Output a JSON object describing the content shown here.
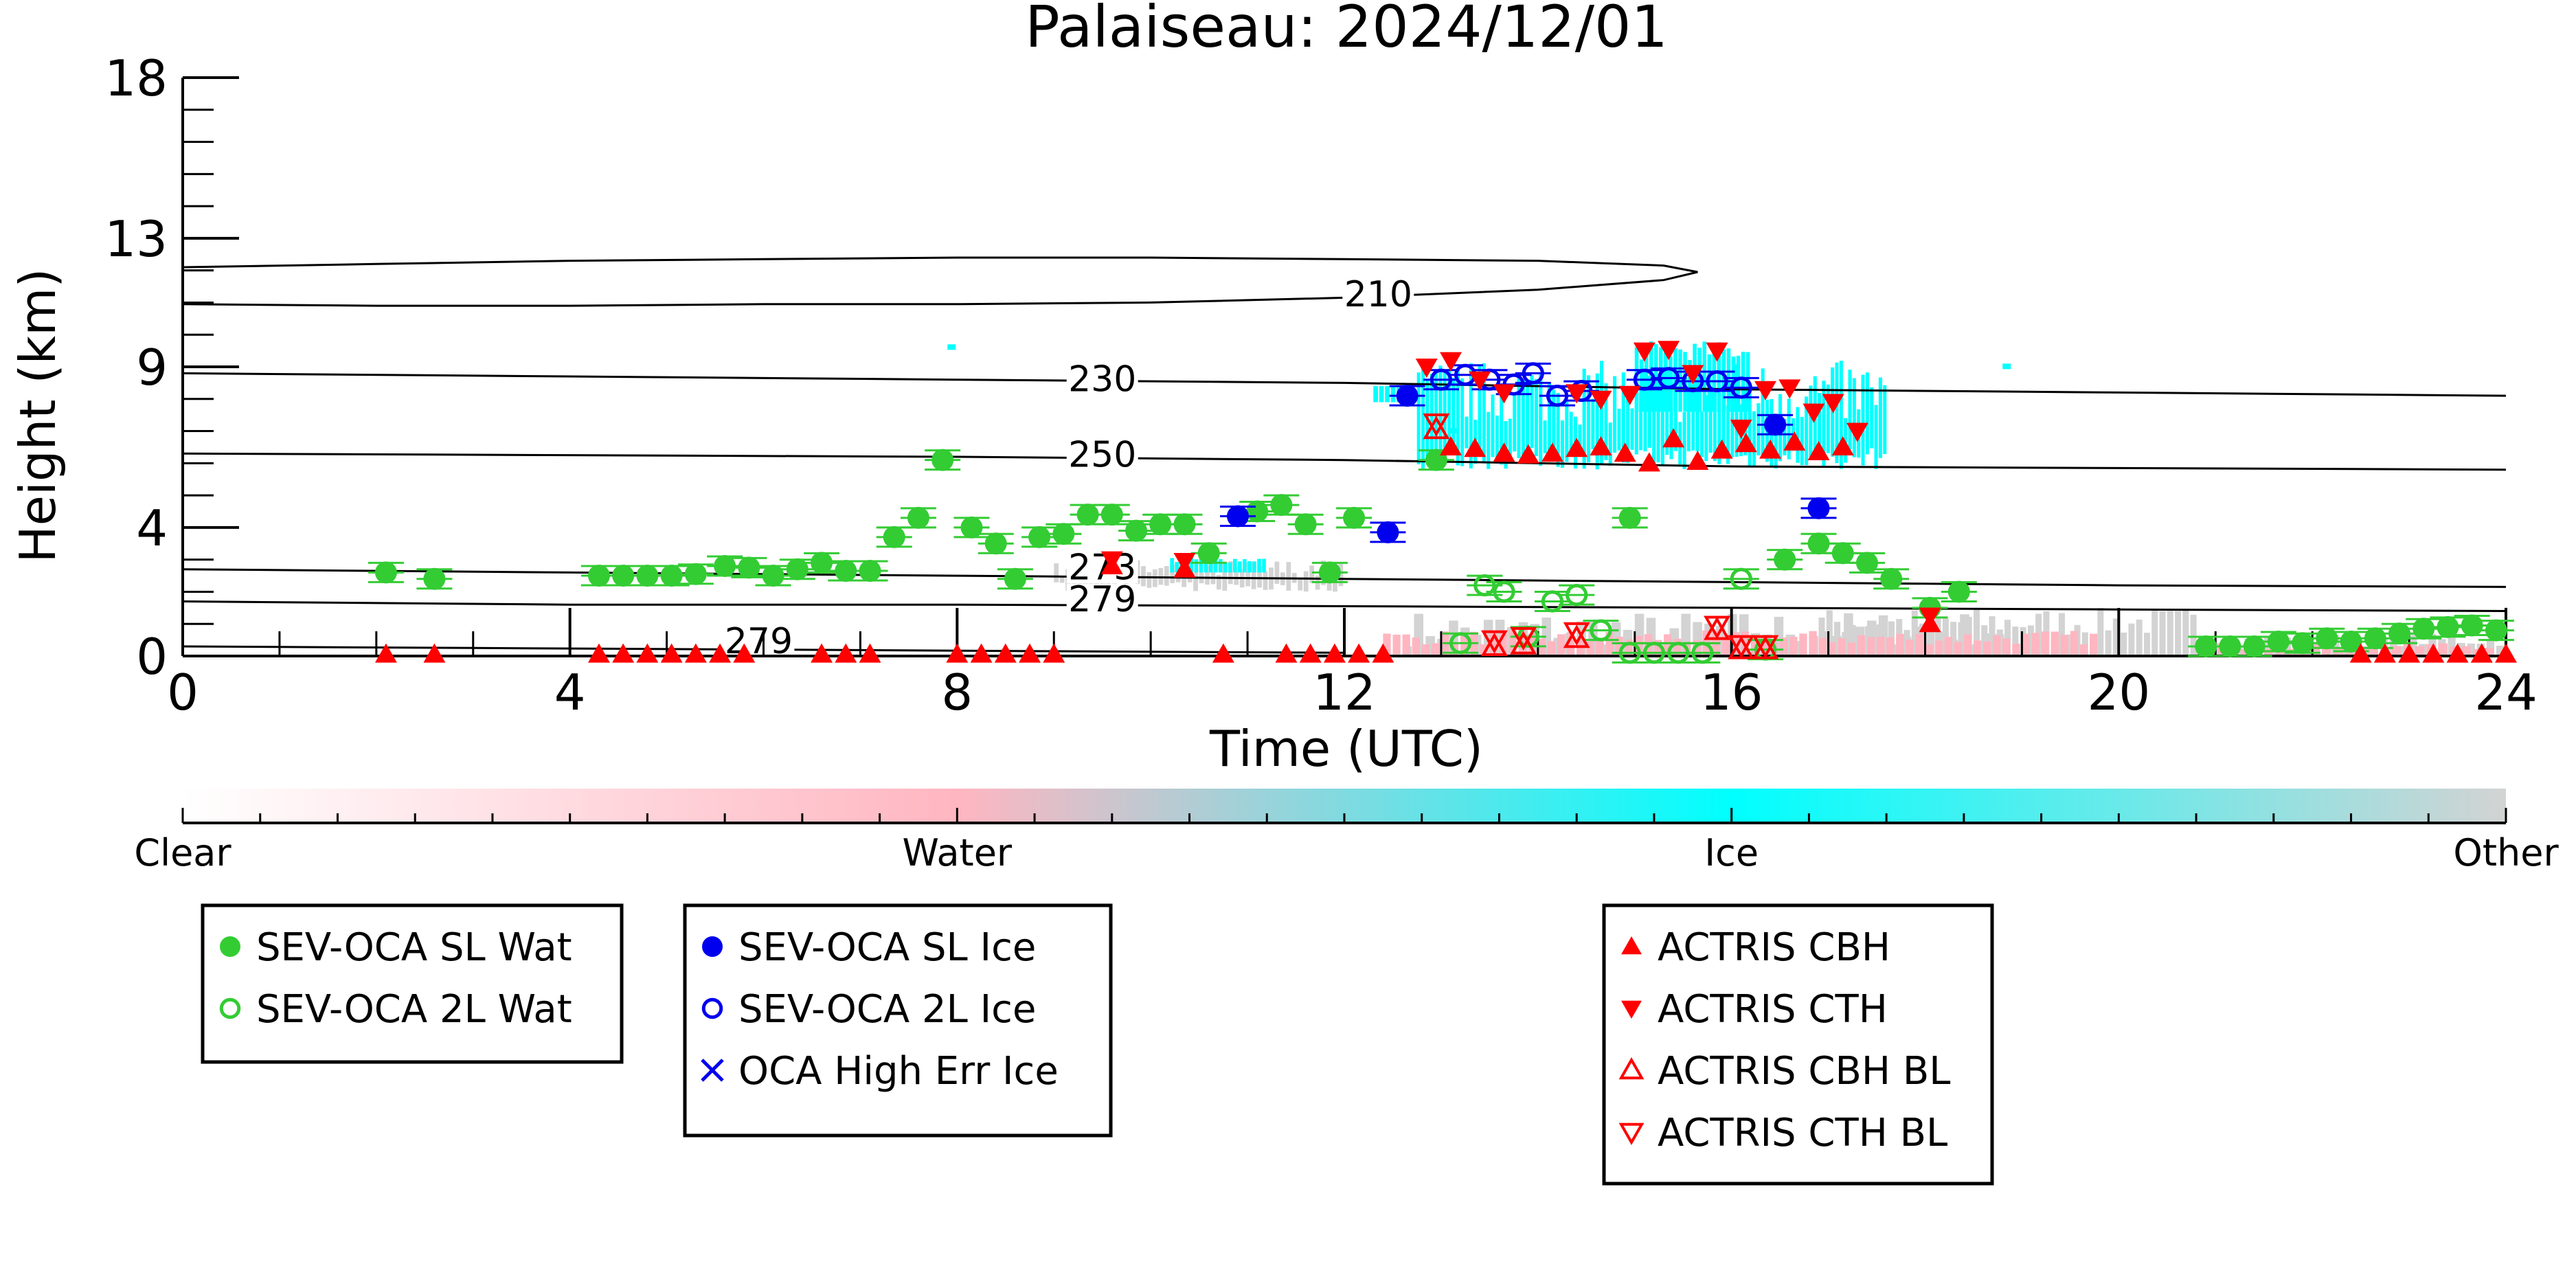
{
  "chart_data": {
    "type": "scatter",
    "title": "Palaiseau: 2024/12/01",
    "xlabel": "Time (UTC)",
    "ylabel": "Height (km)",
    "xlim": [
      0,
      24
    ],
    "ylim": [
      0,
      18
    ],
    "x_ticks": [
      0,
      4,
      8,
      12,
      16,
      20,
      24
    ],
    "y_ticks": [
      0,
      4,
      9,
      13,
      18
    ],
    "colorbar": {
      "labels": [
        "Clear",
        "Water",
        "Ice",
        "Other"
      ],
      "colors": [
        "#ffffff",
        "#ffb6c1",
        "#00ffff",
        "#d3d3d3"
      ]
    },
    "temperature_contours": [
      {
        "label": "210",
        "label_pos": [
          12.35,
          11.1
        ],
        "points": [
          [
            0,
            12.1
          ],
          [
            2,
            12.2
          ],
          [
            4,
            12.3
          ],
          [
            6,
            12.35
          ],
          [
            8,
            12.4
          ],
          [
            10,
            12.4
          ],
          [
            12,
            12.35
          ],
          [
            14,
            12.3
          ],
          [
            15.3,
            12.15
          ],
          [
            15.65,
            11.95
          ],
          [
            15.3,
            11.7
          ],
          [
            14,
            11.4
          ],
          [
            12,
            11.15
          ],
          [
            10,
            11.0
          ],
          [
            8,
            10.95
          ],
          [
            6,
            10.95
          ],
          [
            4,
            10.9
          ],
          [
            2,
            10.9
          ],
          [
            0,
            10.95
          ]
        ]
      },
      {
        "label": "230",
        "label_pos": [
          9.5,
          8.45
        ],
        "points": [
          [
            0,
            8.8
          ],
          [
            4,
            8.7
          ],
          [
            8,
            8.6
          ],
          [
            12,
            8.5
          ],
          [
            16,
            8.3
          ],
          [
            20,
            8.2
          ],
          [
            24,
            8.1
          ]
        ]
      },
      {
        "label": "250",
        "label_pos": [
          9.5,
          6.1
        ],
        "points": [
          [
            0,
            6.3
          ],
          [
            4,
            6.25
          ],
          [
            8,
            6.2
          ],
          [
            12,
            6.1
          ],
          [
            16,
            5.9
          ],
          [
            20,
            5.85
          ],
          [
            24,
            5.8
          ]
        ]
      },
      {
        "label": "273",
        "label_pos": [
          9.5,
          2.6
        ],
        "points": [
          [
            0,
            2.7
          ],
          [
            4,
            2.6
          ],
          [
            8,
            2.5
          ],
          [
            12,
            2.4
          ],
          [
            16,
            2.3
          ],
          [
            20,
            2.2
          ],
          [
            24,
            2.15
          ]
        ]
      },
      {
        "label": "279",
        "label_pos": [
          9.5,
          1.6
        ],
        "points": [
          [
            0,
            1.7
          ],
          [
            4,
            1.6
          ],
          [
            8,
            1.6
          ],
          [
            12,
            1.55
          ],
          [
            16,
            1.5
          ],
          [
            20,
            1.45
          ],
          [
            24,
            1.4
          ]
        ]
      },
      {
        "label": "279",
        "label_pos": [
          5.95,
          0.3
        ],
        "points": [
          [
            0,
            0.3
          ],
          [
            3,
            0.25
          ],
          [
            6,
            0.2
          ],
          [
            9,
            0.15
          ],
          [
            12,
            0.1
          ]
        ]
      }
    ],
    "series": [
      {
        "name": "SEV-OCA SL Wat",
        "color": "#33cc33",
        "marker": "circle-filled",
        "points": [
          [
            2.1,
            2.6
          ],
          [
            2.6,
            2.4
          ],
          [
            4.3,
            2.5
          ],
          [
            4.55,
            2.5
          ],
          [
            4.8,
            2.5
          ],
          [
            5.05,
            2.5
          ],
          [
            5.3,
            2.55
          ],
          [
            5.6,
            2.8
          ],
          [
            5.85,
            2.75
          ],
          [
            6.1,
            2.5
          ],
          [
            6.35,
            2.7
          ],
          [
            6.6,
            2.9
          ],
          [
            6.85,
            2.65
          ],
          [
            7.1,
            2.65
          ],
          [
            7.35,
            3.7
          ],
          [
            7.6,
            4.3
          ],
          [
            7.85,
            6.1
          ],
          [
            8.15,
            4.0
          ],
          [
            8.4,
            3.5
          ],
          [
            8.6,
            2.4
          ],
          [
            8.85,
            3.7
          ],
          [
            9.1,
            3.8
          ],
          [
            9.35,
            4.4
          ],
          [
            9.6,
            4.4
          ],
          [
            9.85,
            3.9
          ],
          [
            10.1,
            4.1
          ],
          [
            10.35,
            4.1
          ],
          [
            10.6,
            3.2
          ],
          [
            11.1,
            4.5
          ],
          [
            11.35,
            4.7
          ],
          [
            11.6,
            4.1
          ],
          [
            11.85,
            2.6
          ],
          [
            12.1,
            4.3
          ],
          [
            12.95,
            6.1
          ],
          [
            14.95,
            4.3
          ],
          [
            16.55,
            3.0
          ],
          [
            16.9,
            3.5
          ],
          [
            17.15,
            3.2
          ],
          [
            17.4,
            2.9
          ],
          [
            17.65,
            2.4
          ],
          [
            18.05,
            1.5
          ],
          [
            18.35,
            2.0
          ],
          [
            20.9,
            0.3
          ],
          [
            21.15,
            0.3
          ],
          [
            21.4,
            0.3
          ],
          [
            21.65,
            0.45
          ],
          [
            21.9,
            0.4
          ],
          [
            22.15,
            0.55
          ],
          [
            22.4,
            0.45
          ],
          [
            22.65,
            0.55
          ],
          [
            22.9,
            0.7
          ],
          [
            23.15,
            0.85
          ],
          [
            23.4,
            0.9
          ],
          [
            23.65,
            0.95
          ],
          [
            23.9,
            0.8
          ]
        ]
      },
      {
        "name": "SEV-OCA 2L Wat",
        "color": "#33cc33",
        "marker": "circle-open",
        "points": [
          [
            13.2,
            0.4
          ],
          [
            13.45,
            2.2
          ],
          [
            13.65,
            2.0
          ],
          [
            13.9,
            0.6
          ],
          [
            14.15,
            1.7
          ],
          [
            14.4,
            1.9
          ],
          [
            14.65,
            0.8
          ],
          [
            14.95,
            0.1
          ],
          [
            15.2,
            0.1
          ],
          [
            15.45,
            0.1
          ],
          [
            15.7,
            0.1
          ],
          [
            16.1,
            2.4
          ],
          [
            16.35,
            0.2
          ]
        ]
      },
      {
        "name": "SEV-OCA SL Ice",
        "color": "#0000ee",
        "marker": "circle-filled",
        "points": [
          [
            10.9,
            4.35
          ],
          [
            12.45,
            3.85
          ],
          [
            12.65,
            8.1
          ],
          [
            16.45,
            7.2
          ],
          [
            16.9,
            4.6
          ]
        ]
      },
      {
        "name": "SEV-OCA 2L Ice",
        "color": "#0000ee",
        "marker": "circle-open",
        "points": [
          [
            13.0,
            8.6
          ],
          [
            13.25,
            8.75
          ],
          [
            13.5,
            8.6
          ],
          [
            13.75,
            8.45
          ],
          [
            13.95,
            8.8
          ],
          [
            14.2,
            8.1
          ],
          [
            14.45,
            8.25
          ],
          [
            15.1,
            8.6
          ],
          [
            15.35,
            8.65
          ],
          [
            15.6,
            8.55
          ],
          [
            15.85,
            8.55
          ],
          [
            16.1,
            8.35
          ]
        ]
      },
      {
        "name": "OCA High Err Ice",
        "color": "#0000ee",
        "marker": "x",
        "points": []
      },
      {
        "name": "ACTRIS CBH",
        "color": "#ff0000",
        "marker": "triangle-up-filled",
        "points": [
          [
            2.1,
            0.05
          ],
          [
            2.6,
            0.05
          ],
          [
            4.3,
            0.05
          ],
          [
            4.55,
            0.05
          ],
          [
            4.8,
            0.05
          ],
          [
            5.05,
            0.05
          ],
          [
            5.3,
            0.05
          ],
          [
            5.55,
            0.05
          ],
          [
            5.8,
            0.05
          ],
          [
            6.6,
            0.05
          ],
          [
            6.85,
            0.05
          ],
          [
            7.1,
            0.05
          ],
          [
            8.0,
            0.05
          ],
          [
            8.25,
            0.05
          ],
          [
            8.5,
            0.05
          ],
          [
            8.75,
            0.05
          ],
          [
            9.0,
            0.05
          ],
          [
            9.6,
            2.8
          ],
          [
            10.35,
            2.7
          ],
          [
            10.75,
            0.05
          ],
          [
            11.4,
            0.05
          ],
          [
            11.65,
            0.05
          ],
          [
            11.9,
            0.05
          ],
          [
            12.15,
            0.05
          ],
          [
            12.4,
            0.05
          ],
          [
            13.1,
            6.5
          ],
          [
            13.35,
            6.45
          ],
          [
            13.65,
            6.3
          ],
          [
            13.9,
            6.25
          ],
          [
            14.15,
            6.3
          ],
          [
            14.4,
            6.45
          ],
          [
            14.65,
            6.5
          ],
          [
            14.9,
            6.3
          ],
          [
            15.15,
            6.0
          ],
          [
            15.4,
            6.75
          ],
          [
            15.65,
            6.05
          ],
          [
            15.9,
            6.4
          ],
          [
            16.15,
            6.6
          ],
          [
            16.4,
            6.4
          ],
          [
            16.65,
            6.65
          ],
          [
            16.9,
            6.35
          ],
          [
            17.15,
            6.5
          ],
          [
            18.05,
            1.0
          ],
          [
            22.5,
            0.05
          ],
          [
            22.75,
            0.05
          ],
          [
            23.0,
            0.05
          ],
          [
            23.25,
            0.05
          ],
          [
            23.5,
            0.05
          ],
          [
            23.75,
            0.05
          ],
          [
            24.0,
            0.05
          ]
        ]
      },
      {
        "name": "ACTRIS CTH",
        "color": "#ff0000",
        "marker": "triangle-down-filled",
        "points": [
          [
            9.6,
            3.0
          ],
          [
            10.35,
            2.95
          ],
          [
            12.85,
            9.0
          ],
          [
            13.1,
            9.2
          ],
          [
            13.4,
            8.6
          ],
          [
            13.65,
            8.2
          ],
          [
            14.4,
            8.2
          ],
          [
            14.65,
            8.0
          ],
          [
            14.95,
            8.15
          ],
          [
            15.1,
            9.5
          ],
          [
            15.35,
            9.55
          ],
          [
            15.6,
            8.8
          ],
          [
            15.85,
            9.5
          ],
          [
            16.1,
            7.1
          ],
          [
            16.35,
            8.3
          ],
          [
            16.6,
            8.35
          ],
          [
            16.85,
            7.6
          ],
          [
            17.05,
            7.9
          ],
          [
            17.3,
            7.0
          ],
          [
            18.05,
            1.25
          ]
        ]
      },
      {
        "name": "ACTRIS CBH BL",
        "color": "#ff0000",
        "marker": "triangle-up-open",
        "points": [
          [
            12.95,
            7.05
          ],
          [
            13.55,
            0.3
          ],
          [
            13.85,
            0.35
          ],
          [
            14.4,
            0.55
          ],
          [
            15.85,
            0.8
          ],
          [
            16.1,
            0.2
          ],
          [
            16.35,
            0.2
          ]
        ]
      },
      {
        "name": "ACTRIS CTH BL",
        "color": "#ff0000",
        "marker": "triangle-down-open",
        "points": [
          [
            12.95,
            7.25
          ],
          [
            13.55,
            0.5
          ],
          [
            13.85,
            0.6
          ],
          [
            14.4,
            0.75
          ],
          [
            15.85,
            0.95
          ],
          [
            16.1,
            0.35
          ],
          [
            16.35,
            0.35
          ]
        ]
      }
    ],
    "legend": [
      {
        "column": "left",
        "items": [
          "SEV-OCA SL Wat",
          "SEV-OCA 2L Wat"
        ]
      },
      {
        "column": "middle",
        "items": [
          "SEV-OCA SL Ice",
          "SEV-OCA 2L Ice",
          "OCA High Err Ice"
        ]
      },
      {
        "column": "right",
        "items": [
          "ACTRIS CBH",
          "ACTRIS CTH",
          "ACTRIS CBH BL",
          "ACTRIS CTH BL"
        ]
      }
    ],
    "grid": false
  }
}
